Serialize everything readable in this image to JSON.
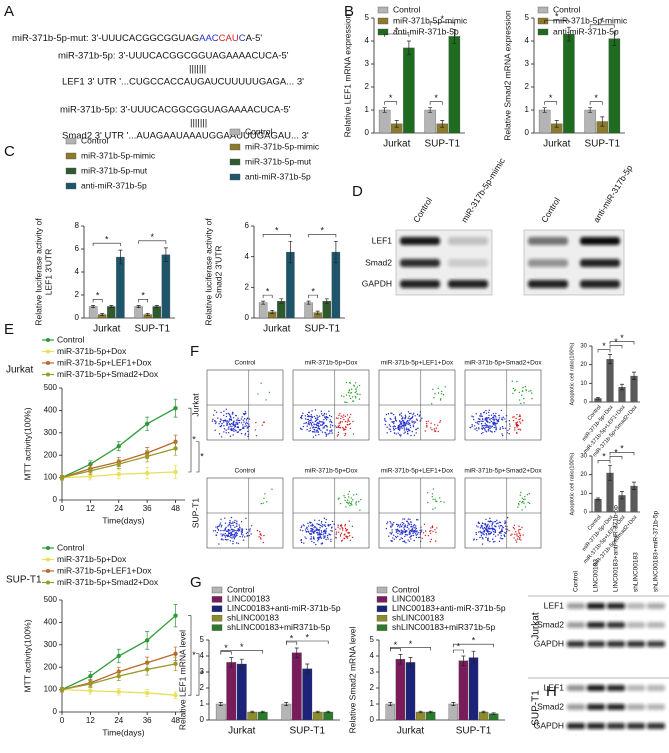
{
  "panel_labels": [
    "A",
    "B",
    "C",
    "D",
    "E",
    "F",
    "G",
    "H"
  ],
  "sequences": {
    "mut": [
      "miR-371b-5p-mut: 3'-UUUCACGGCGGUAG",
      "AAC",
      "CAU",
      "C",
      "A-5'"
    ],
    "mir_lef1": "miR-371b-5p: 3'-UUUCACGGCGGUAGAAAACUCA-5'",
    "pairs_lef1": "|||||||",
    "lef1_utr": "LEF1 3' UTR '...CUGCCACCAUGAUCUUUUUGAGA... 3'",
    "mir_smad2": "miR-371b-5p: 3'-UUUCACGGCGGUAGAAAACUCA-5'",
    "pairs_smad2": "|||||||",
    "smad2_utr": "Smad2 3' UTR '...AUAGAAUAAAUGGAAUUUGAGAU... 3'"
  },
  "blot_d": {
    "lanes": [
      "Control",
      "miR-317b-5p-mimic",
      "Control",
      "anti-miR-317b-5p"
    ],
    "rows": [
      "LEF1",
      "Smad2",
      "GAPDH"
    ]
  },
  "flow_f": {
    "titles": [
      "Control",
      "miR-371b-5p+Dox",
      "miR-371b-5p+LEF1+Dox",
      "miR-371b-5p+Smad2+Dox"
    ],
    "rows": [
      "Jurkat",
      "SUP-T1"
    ]
  },
  "blot_h": {
    "lanes": [
      "Control",
      "LINC00183",
      "LINC00183+anti-miR-371b-5p",
      "shLINC00183",
      "shLINC00183+miR-371b-5p"
    ],
    "groups": [
      {
        "cell": "Jurkat",
        "rows": [
          "LEF1",
          "Smad2",
          "GAPDH"
        ]
      },
      {
        "cell": "SUP-T1",
        "rows": [
          "LEF1",
          "Smad2",
          "GAPDH"
        ]
      }
    ]
  },
  "chart_data": [
    {
      "type": "bar",
      "ylabel": "Relative LEF1 mRNA expression",
      "categories": [
        "Jurkat",
        "SUP-T1"
      ],
      "ylim": [
        0,
        5
      ],
      "yticks": [
        0,
        1,
        2,
        3,
        4,
        5
      ],
      "significance": "*",
      "series": [
        {
          "name": "Control",
          "color": "#b4b4b4",
          "values": [
            1.0,
            1.0
          ],
          "errors": [
            0.1,
            0.1
          ]
        },
        {
          "name": "miR-371b-5p-mimic",
          "color": "#8c7a2c",
          "values": [
            0.4,
            0.4
          ],
          "errors": [
            0.15,
            0.15
          ]
        },
        {
          "name": "anti-miR-371b-5p",
          "color": "#1f6b1f",
          "values": [
            3.7,
            4.2
          ],
          "errors": [
            0.3,
            0.3
          ]
        }
      ]
    },
    {
      "type": "bar",
      "ylabel": "Relative Smad2 mRNA expression",
      "categories": [
        "Jurkat",
        "SUP-T1"
      ],
      "ylim": [
        0,
        5
      ],
      "yticks": [
        0,
        1,
        2,
        3,
        4,
        5
      ],
      "significance": "*",
      "series": [
        {
          "name": "Control",
          "color": "#b4b4b4",
          "values": [
            1.0,
            1.0
          ],
          "errors": [
            0.1,
            0.1
          ]
        },
        {
          "name": "miR-371b-5p-mimic",
          "color": "#8c7a2c",
          "values": [
            0.4,
            0.5
          ],
          "errors": [
            0.15,
            0.2
          ]
        },
        {
          "name": "anti-miR-371b-5p",
          "color": "#1f6b1f",
          "values": [
            4.3,
            4.1
          ],
          "errors": [
            0.3,
            0.3
          ]
        }
      ]
    },
    {
      "type": "bar",
      "ylabel": [
        "Relative luciferase activity of",
        "LEF1 3'UTR"
      ],
      "categories": [
        "Jurkat",
        "SUP-T1"
      ],
      "ylim": [
        0,
        8
      ],
      "yticks": [
        0,
        2,
        4,
        6,
        8
      ],
      "significance": "*",
      "series": [
        {
          "name": "Control",
          "color": "#b4b4b4",
          "values": [
            1.0,
            1.0
          ],
          "errors": [
            0.1,
            0.1
          ]
        },
        {
          "name": "miR-371b-5p-mimic",
          "color": "#8c7a2c",
          "values": [
            0.3,
            0.3
          ],
          "errors": [
            0.1,
            0.1
          ]
        },
        {
          "name": "miR-371b-5p-mut",
          "color": "#2e5a2e",
          "values": [
            1.0,
            1.0
          ],
          "errors": [
            0.1,
            0.1
          ]
        },
        {
          "name": "anti-miR-371b-5p",
          "color": "#1d566b",
          "values": [
            5.3,
            5.5
          ],
          "errors": [
            0.6,
            0.6
          ]
        }
      ]
    },
    {
      "type": "bar",
      "ylabel": [
        "Relative luciferase activity of",
        "Smad2 3'UTR"
      ],
      "categories": [
        "Jurkat",
        "SUP-T1"
      ],
      "ylim": [
        0,
        6
      ],
      "yticks": [
        0,
        2,
        4,
        6
      ],
      "significance": "*",
      "series": [
        {
          "name": "Control",
          "color": "#b4b4b4",
          "values": [
            1.0,
            1.0
          ],
          "errors": [
            0.1,
            0.1
          ]
        },
        {
          "name": "miR-371b-5p-mimic",
          "color": "#8c7a2c",
          "values": [
            0.4,
            0.35
          ],
          "errors": [
            0.1,
            0.1
          ]
        },
        {
          "name": "miR-371b-5p-mut",
          "color": "#2e5a2e",
          "values": [
            1.1,
            1.1
          ],
          "errors": [
            0.15,
            0.15
          ]
        },
        {
          "name": "anti-miR-371b-5p",
          "color": "#1d566b",
          "values": [
            4.3,
            4.3
          ],
          "errors": [
            0.7,
            0.7
          ]
        }
      ]
    },
    {
      "type": "line",
      "title": "Jurkat",
      "xlabel": "Time(days)",
      "ylabel": "MTT activity(100%)",
      "x": [
        0,
        12,
        24,
        36,
        48
      ],
      "xlim": [
        0,
        52
      ],
      "xticks": [
        0,
        12,
        24,
        36,
        48
      ],
      "ylim": [
        0,
        500
      ],
      "yticks": [
        0,
        100,
        200,
        300,
        400,
        500
      ],
      "significance": "*",
      "series": [
        {
          "name": "Control",
          "color": "#2e9a3a",
          "values": [
            100,
            160,
            240,
            340,
            410
          ],
          "errors": [
            10,
            15,
            20,
            30,
            40
          ]
        },
        {
          "name": "miR-371b-5p+Dox",
          "color": "#e8e05a",
          "values": [
            100,
            105,
            115,
            120,
            125
          ],
          "errors": [
            10,
            15,
            20,
            25,
            30
          ]
        },
        {
          "name": "miR-371b-5p+LEF1+Dox",
          "color": "#b8682a",
          "values": [
            100,
            140,
            170,
            210,
            260
          ],
          "errors": [
            10,
            15,
            20,
            25,
            30
          ]
        },
        {
          "name": "miR-371b-5p+Smad2+Dox",
          "color": "#9a9a2a",
          "values": [
            100,
            130,
            160,
            195,
            230
          ],
          "errors": [
            10,
            15,
            20,
            25,
            30
          ]
        }
      ]
    },
    {
      "type": "line",
      "title": "SUP-T1",
      "xlabel": "Time(days)",
      "ylabel": "MTT activity(100%)",
      "x": [
        0,
        12,
        24,
        36,
        48
      ],
      "xlim": [
        0,
        52
      ],
      "xticks": [
        0,
        12,
        24,
        36,
        48
      ],
      "ylim": [
        0,
        500
      ],
      "yticks": [
        0,
        100,
        200,
        300,
        400,
        500
      ],
      "significance": "*",
      "series": [
        {
          "name": "Control",
          "color": "#2e9a3a",
          "values": [
            100,
            160,
            250,
            320,
            430
          ],
          "errors": [
            10,
            20,
            30,
            40,
            50
          ]
        },
        {
          "name": "miR-371b-5p+Dox",
          "color": "#e8e05a",
          "values": [
            100,
            95,
            90,
            85,
            75
          ],
          "errors": [
            10,
            15,
            15,
            15,
            15
          ]
        },
        {
          "name": "miR-371b-5p+LEF1+Dox",
          "color": "#b8682a",
          "values": [
            100,
            130,
            180,
            220,
            260
          ],
          "errors": [
            10,
            15,
            20,
            25,
            30
          ]
        },
        {
          "name": "miR-371b-5p+Smad2+Dox",
          "color": "#9a9a2a",
          "values": [
            100,
            125,
            160,
            190,
            215
          ],
          "errors": [
            10,
            15,
            20,
            25,
            30
          ]
        }
      ]
    },
    {
      "type": "bar",
      "ylabel": "Apoptotic cell ratio(100%)",
      "categories": [
        "Control",
        "miR-371b-5p+Dox",
        "miR-371b-5p+LEF1+Dox",
        "miR-371b-5p+Smad2+Dox"
      ],
      "values": [
        2,
        23,
        8,
        14
      ],
      "errors": [
        0.5,
        2.5,
        1.5,
        2
      ],
      "color": "#5a5a5a",
      "ylim": [
        0,
        30
      ],
      "yticks": [
        0,
        10,
        20,
        30
      ],
      "significance": "*"
    },
    {
      "type": "bar",
      "ylabel": "Apoptotic cell ratio(100%)",
      "categories": [
        "Control",
        "miR-371b-5p+Dox",
        "miR-371b-5p+LEF1+Dox",
        "miR-371b-5p+Smad2+Dox"
      ],
      "values": [
        7,
        21,
        9,
        14
      ],
      "errors": [
        0.5,
        4,
        2,
        2
      ],
      "color": "#5a5a5a",
      "ylim": [
        0,
        30
      ],
      "yticks": [
        0,
        10,
        20,
        30
      ],
      "significance": "*"
    },
    {
      "type": "bar",
      "ylabel": "Relative LEF1 mRNA level",
      "categories": [
        "Jurkat",
        "SUP-T1"
      ],
      "ylim": [
        0,
        5
      ],
      "yticks": [
        0,
        1,
        2,
        3,
        4,
        5
      ],
      "significance": "*",
      "series": [
        {
          "name": "Control",
          "color": "#b4b4b4",
          "values": [
            1.0,
            1.0
          ],
          "errors": [
            0.1,
            0.1
          ]
        },
        {
          "name": "LINC00183",
          "color": "#7a1b5b",
          "values": [
            3.6,
            4.2
          ],
          "errors": [
            0.3,
            0.3
          ]
        },
        {
          "name": "LINC00183+anti-miR-371b-5p",
          "color": "#1c237a",
          "values": [
            3.5,
            3.2
          ],
          "errors": [
            0.3,
            0.3
          ]
        },
        {
          "name": "shLINC00183",
          "color": "#8c8c2c",
          "values": [
            0.5,
            0.5
          ],
          "errors": [
            0.05,
            0.05
          ]
        },
        {
          "name": "shLINC00183+miR371b-5p",
          "color": "#2c7a2c",
          "values": [
            0.5,
            0.5
          ],
          "errors": [
            0.05,
            0.05
          ]
        }
      ]
    },
    {
      "type": "bar",
      "ylabel": "Relative Smad2 mRNA level",
      "categories": [
        "Jurkat",
        "SUP-T1"
      ],
      "ylim": [
        0,
        5
      ],
      "yticks": [
        0,
        1,
        2,
        3,
        4,
        5
      ],
      "significance": "*",
      "series": [
        {
          "name": "Control",
          "color": "#b4b4b4",
          "values": [
            1.0,
            1.0
          ],
          "errors": [
            0.1,
            0.1
          ]
        },
        {
          "name": "LINC00183",
          "color": "#7a1b5b",
          "values": [
            3.8,
            3.7
          ],
          "errors": [
            0.3,
            0.3
          ]
        },
        {
          "name": "LINC00183+anti-miR-371b-5p",
          "color": "#1c237a",
          "values": [
            3.6,
            3.9
          ],
          "errors": [
            0.3,
            0.4
          ]
        },
        {
          "name": "shLINC00183",
          "color": "#8c8c2c",
          "values": [
            0.5,
            0.5
          ],
          "errors": [
            0.05,
            0.05
          ]
        },
        {
          "name": "shLINC00183+miR371b-5p",
          "color": "#2c7a2c",
          "values": [
            0.5,
            0.4
          ],
          "errors": [
            0.05,
            0.05
          ]
        }
      ]
    }
  ]
}
